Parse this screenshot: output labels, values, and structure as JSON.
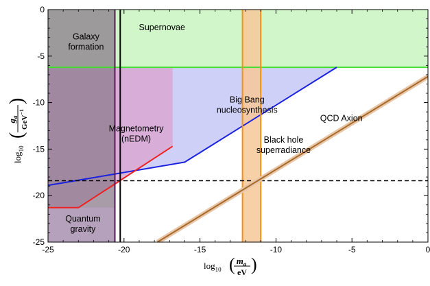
{
  "chart_data": {
    "type": "area",
    "title": "",
    "xlim": [
      -25,
      0
    ],
    "ylim": [
      -25,
      0
    ],
    "x_ticks": [
      -25,
      -20,
      -15,
      -10,
      -5,
      0
    ],
    "y_ticks": [
      0,
      -5,
      -10,
      -15,
      -20,
      -25
    ],
    "x_tick_labels": [
      "-25",
      "-20",
      "-15",
      "-10",
      "-5",
      "0"
    ],
    "y_tick_labels": [
      "0",
      "-5",
      "-10",
      "-15",
      "-20",
      "-25"
    ],
    "xlabel": {
      "prefix": "log",
      "sub": "10",
      "num": "m",
      "num_sub": "a",
      "den": "eV"
    },
    "ylabel": {
      "prefix": "log",
      "sub": "10",
      "num": "g",
      "num_sub": "a",
      "den": "GeV",
      "den_sup": "−1"
    },
    "grid": false,
    "regions": [
      {
        "id": "supernovae",
        "label": [
          "Supernovae"
        ],
        "fill": "#c8f5c0",
        "stroke": "#44dd33",
        "polygon": [
          [
            -25,
            0
          ],
          [
            0,
            0
          ],
          [
            0,
            -6.2
          ],
          [
            -25,
            -6.2
          ]
        ]
      },
      {
        "id": "bbn",
        "label": [
          "Big Bang",
          "nucleosynthesis"
        ],
        "fill": "#c5c8f7",
        "stroke": "#1a22e0",
        "polygon": [
          [
            -25,
            -6.2
          ],
          [
            -6,
            -6.2
          ],
          [
            -16,
            -16.4
          ],
          [
            -25,
            -18.9
          ]
        ]
      },
      {
        "id": "magnetometry",
        "label": [
          "Magnetometry",
          "(nEDM)"
        ],
        "fill": "#d9a8d4",
        "stroke": "#ee2222",
        "polygon": [
          [
            -25,
            -6.2
          ],
          [
            -16.8,
            -6.2
          ],
          [
            -16.8,
            -14.7
          ],
          [
            -20.8,
            -19.1
          ],
          [
            -23,
            -21.3
          ],
          [
            -25,
            -21.3
          ]
        ]
      },
      {
        "id": "galaxy",
        "label": [
          "Galaxy",
          "formation"
        ],
        "fill": "#8c7b8c",
        "stroke": "#5a1a5a",
        "polygon": [
          [
            -25,
            0
          ],
          [
            -20.6,
            0
          ],
          [
            -20.6,
            -25
          ],
          [
            -25,
            -25
          ]
        ]
      },
      {
        "id": "black_hole",
        "label": [
          "Black hole",
          "superradiance"
        ],
        "fill": "#f7c899",
        "stroke": "#f59010",
        "polygon": [
          [
            -12.2,
            0
          ],
          [
            -11.0,
            0
          ],
          [
            -11.0,
            -25
          ],
          [
            -12.2,
            -25
          ]
        ]
      },
      {
        "id": "quantum_gravity",
        "label": [
          "Quantum",
          "gravity"
        ],
        "fill": "#b9a3c2",
        "stroke": "#5a1a5a",
        "polygon": [
          [
            -25,
            -21.3
          ],
          [
            -20.6,
            -21.3
          ],
          [
            -20.6,
            -25
          ],
          [
            -25,
            -25
          ]
        ]
      }
    ],
    "lines": [
      {
        "id": "supernovae_bound",
        "color": "#44dd33",
        "points": [
          [
            -25,
            -6.2
          ],
          [
            0,
            -6.2
          ]
        ]
      },
      {
        "id": "bbn_bound",
        "color": "#1a22e0",
        "points": [
          [
            -25,
            -18.9
          ],
          [
            -16,
            -16.4
          ],
          [
            -6,
            -6.2
          ]
        ]
      },
      {
        "id": "nedm_bound",
        "color": "#ee2222",
        "points": [
          [
            -25,
            -21.3
          ],
          [
            -23,
            -21.3
          ],
          [
            -16.8,
            -14.7
          ]
        ]
      },
      {
        "id": "galaxy_bound",
        "color": "#5a1a5a",
        "points": [
          [
            -20.6,
            0
          ],
          [
            -20.6,
            -25
          ]
        ]
      },
      {
        "id": "black_vertical",
        "color": "#000000",
        "points": [
          [
            -20.25,
            0
          ],
          [
            -20.25,
            -25
          ]
        ]
      },
      {
        "id": "bh_left",
        "color": "#f59010",
        "points": [
          [
            -12.2,
            0
          ],
          [
            -12.2,
            -25
          ]
        ]
      },
      {
        "id": "bh_right",
        "color": "#f59010",
        "points": [
          [
            -11.0,
            0
          ],
          [
            -11.0,
            -25
          ]
        ]
      },
      {
        "id": "dashed_horizontal",
        "color": "#000000",
        "dashed": true,
        "points": [
          [
            -25,
            -18.4
          ],
          [
            0,
            -18.4
          ]
        ]
      },
      {
        "id": "qcd_axion",
        "label": "QCD Axion",
        "color": "#a86a2a",
        "band_color": "#e8c6a8",
        "points": [
          [
            -17.8,
            -25
          ],
          [
            0,
            -7.2
          ]
        ]
      }
    ]
  }
}
